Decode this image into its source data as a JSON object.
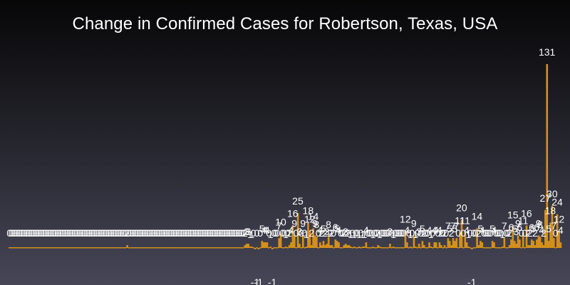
{
  "title": "Change in Confirmed Cases for Robertson, Texas, USA",
  "chart_data": {
    "type": "bar",
    "title": "Change in Confirmed Cases for Robertson, Texas, USA",
    "xlabel": "",
    "ylabel": "",
    "ylim": [
      -1,
      131
    ],
    "grid": false,
    "bar_color": "#d4901c",
    "values": [
      0,
      0,
      0,
      0,
      0,
      0,
      0,
      0,
      0,
      0,
      0,
      0,
      0,
      0,
      0,
      0,
      0,
      0,
      0,
      0,
      0,
      0,
      0,
      0,
      0,
      0,
      0,
      0,
      0,
      0,
      0,
      0,
      0,
      0,
      0,
      0,
      0,
      0,
      0,
      0,
      0,
      0,
      0,
      0,
      0,
      0,
      0,
      0,
      0,
      0,
      0,
      0,
      0,
      0,
      0,
      0,
      0,
      0,
      0,
      0,
      0,
      0,
      0,
      0,
      0,
      0,
      0,
      0,
      0,
      2,
      0,
      0,
      0,
      0,
      0,
      0,
      0,
      0,
      0,
      0,
      0,
      0,
      0,
      0,
      0,
      0,
      0,
      0,
      0,
      0,
      0,
      0,
      0,
      0,
      0,
      0,
      0,
      0,
      0,
      0,
      0,
      0,
      0,
      0,
      0,
      0,
      0,
      0,
      0,
      0,
      0,
      0,
      0,
      0,
      0,
      0,
      0,
      0,
      0,
      0,
      0,
      0,
      0,
      0,
      0,
      0,
      0,
      0,
      0,
      0,
      0,
      0,
      0,
      0,
      0,
      0,
      0,
      0,
      2,
      3,
      3,
      1,
      1,
      0,
      -1,
      0,
      -1,
      0,
      5,
      4,
      4,
      4,
      0,
      1,
      -1,
      0,
      0,
      0,
      7,
      10,
      0,
      0,
      1,
      0,
      2,
      4,
      16,
      9,
      0,
      25,
      3,
      0,
      9,
      0,
      1,
      18,
      12,
      2,
      14,
      9,
      8,
      0,
      4,
      2,
      5,
      2,
      3,
      8,
      2,
      2,
      0,
      6,
      5,
      4,
      0,
      0,
      2,
      3,
      2,
      2,
      1,
      0,
      1,
      0,
      0,
      1,
      0,
      1,
      1,
      4,
      0,
      0,
      0,
      1,
      0,
      0,
      2,
      1,
      0,
      0,
      0,
      0,
      0,
      3,
      0,
      1,
      0,
      0,
      0,
      0,
      0,
      0,
      12,
      4,
      0,
      1,
      0,
      9,
      1,
      0,
      3,
      0,
      5,
      2,
      0,
      0,
      4,
      1,
      0,
      4,
      4,
      0,
      4,
      2,
      0,
      2,
      0,
      7,
      5,
      2,
      7,
      5,
      7,
      0,
      11,
      20,
      0,
      11,
      4,
      1,
      0,
      -1,
      0,
      0,
      14,
      2,
      5,
      4,
      0,
      0,
      0,
      0,
      0,
      5,
      4,
      0,
      0,
      0,
      0,
      1,
      7,
      0,
      0,
      2,
      6,
      15,
      5,
      3,
      9,
      6,
      0,
      11,
      0,
      16,
      2,
      2,
      6,
      5,
      2,
      6,
      9,
      8,
      4,
      2,
      27,
      131,
      5,
      18,
      30,
      7,
      0,
      24,
      12,
      4
    ]
  },
  "label_left": "0"
}
